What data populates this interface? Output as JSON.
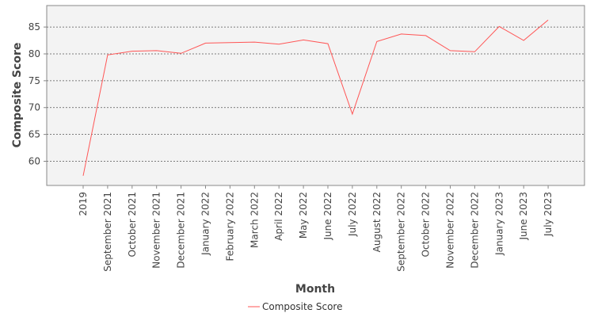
{
  "chart_data": {
    "type": "line",
    "title": "",
    "xlabel": "Month",
    "ylabel": "Composite Score",
    "categories": [
      "2019",
      "September 2021",
      "October 2021",
      "November 2021",
      "December 2021",
      "January 2022",
      "February 2022",
      "March 2022",
      "April 2022",
      "May 2022",
      "June 2022",
      "July 2022",
      "August 2022",
      "September 2022",
      "October 2022",
      "November 2022",
      "December 2022",
      "January 2023",
      "June 2023",
      "July 2023"
    ],
    "series": [
      {
        "name": "Composite Score",
        "color": "#ff5555",
        "values": [
          57.3,
          79.8,
          80.5,
          80.6,
          80.1,
          82.0,
          82.1,
          82.2,
          81.8,
          82.6,
          81.9,
          68.8,
          82.3,
          83.7,
          83.4,
          80.6,
          80.4,
          85.1,
          82.5,
          86.3
        ]
      }
    ],
    "ylim": [
      55.5,
      89
    ],
    "yticks": [
      60,
      65,
      70,
      75,
      80,
      85
    ],
    "grid": true,
    "legend_position": "bottom"
  }
}
